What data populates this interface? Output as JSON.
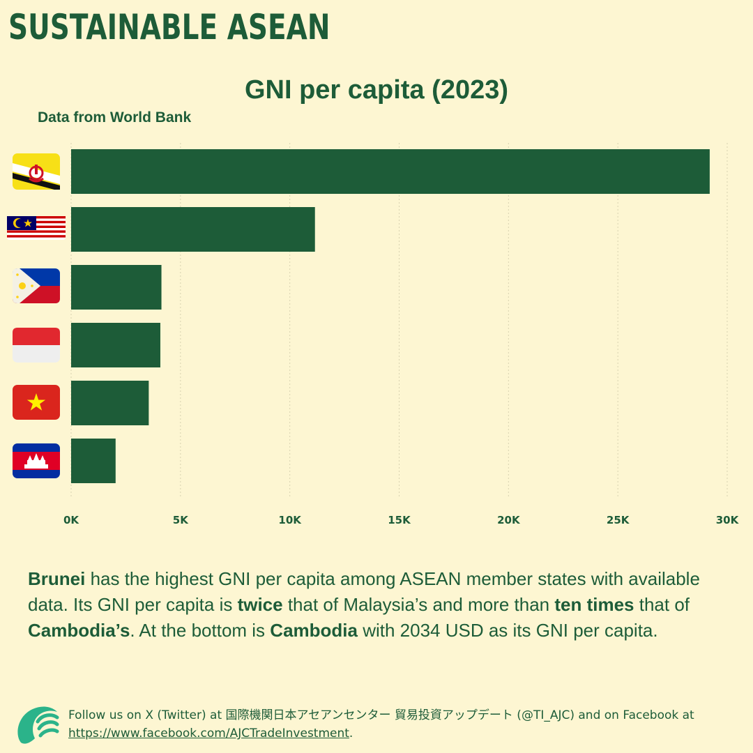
{
  "brand": "SUSTAINABLE ASEAN",
  "source": "Data from World Bank",
  "chart_data": {
    "type": "bar",
    "orientation": "horizontal",
    "title": "GNI per capita (2023)",
    "categories": [
      "Brunei",
      "Malaysia",
      "Philippines",
      "Indonesia",
      "Vietnam",
      "Cambodia"
    ],
    "category_icons": [
      "brunei-flag-icon",
      "malaysia-flag-icon",
      "philippines-flag-icon",
      "indonesia-flag-icon",
      "vietnam-flag-icon",
      "cambodia-flag-icon"
    ],
    "values": [
      29200,
      11150,
      4130,
      4080,
      3550,
      2034
    ],
    "xlim": [
      0,
      30000
    ],
    "xticks": [
      0,
      5000,
      10000,
      15000,
      20000,
      25000,
      30000
    ],
    "xtick_labels": [
      "0K",
      "5K",
      "10K",
      "15K",
      "20K",
      "25K",
      "30K"
    ],
    "grid": "vertical dotted",
    "bar_color": "#1d5c38"
  },
  "summary": {
    "brunei": "Brunei",
    "t1": " has the highest GNI per capita among ASEAN member states with available data. Its GNI per capita is ",
    "twice": "twice",
    "t2": " that of Malaysia’s and more than ",
    "ten_times": "ten times",
    "t3": " that of ",
    "cambodias": "Cambodia’s",
    "t4": ". At the bottom is ",
    "cambodia": "Cambodia",
    "t5": " with 2034 USD as its GNI per capita."
  },
  "footer": {
    "t1": "Follow us on X (Twitter) at 国際機関日本アセアンセンター 貿易投資アップデート (@TI_AJC) and on Facebook at ",
    "link": "https://www.facebook.com/AJCTradeInvestment",
    "t2": "."
  },
  "colors": {
    "background": "#fdf6d2",
    "primary": "#1d5c38",
    "logo_teal": "#2bb38a"
  }
}
